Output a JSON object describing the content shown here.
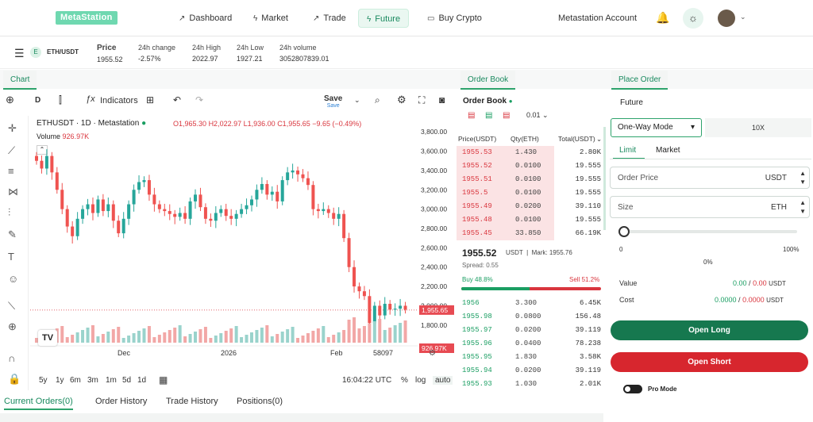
{
  "nav": {
    "logo": "MetaStation",
    "items": [
      {
        "label": "Dashboard"
      },
      {
        "label": "Market"
      },
      {
        "label": "Trade"
      },
      {
        "label": "Future"
      },
      {
        "label": "Buy Crypto"
      }
    ],
    "account": "Metastation Account"
  },
  "ticker": {
    "pair": "ETH/USDT",
    "coin": "E",
    "price_label": "Price",
    "price": "1955.52",
    "change_label": "24h change",
    "change": "-2.57%",
    "high_label": "24h High",
    "high": "2022.97",
    "low_label": "24h Low",
    "low": "1927.21",
    "volume_label": "24h volume",
    "volume": "3052807839.01"
  },
  "chart_panel": {
    "tab": "Chart",
    "interval": "D",
    "indicators": "Indicators",
    "save": "Save",
    "save_sub": "Save",
    "symbol": "ETHUSDT · 1D · Metastation",
    "ohlc": {
      "o": "O1,965.30",
      "h": "H2,022.97",
      "l": "L1,936.00",
      "c": "C1,955.65",
      "chg": "−9.65 (−0.49%)"
    },
    "volume_label": "Volume",
    "volume_value": "926.97K",
    "price_tag": "1,955.65",
    "vol_tag": "926.97K",
    "y_ticks": [
      "3,800.00",
      "3,600.00",
      "3,400.00",
      "3,200.00",
      "3,000.00",
      "2,800.00",
      "2,600.00",
      "2,400.00",
      "2,200.00",
      "2,000.00",
      "1,800.00"
    ],
    "x_ticks": [
      "Dec",
      "2026",
      "Feb"
    ],
    "x_extra": "58097",
    "ranges": [
      "5y",
      "1y",
      "6m",
      "3m",
      "1m",
      "5d",
      "1d"
    ],
    "time": "16:04:22 UTC",
    "pct": "%",
    "log": "log",
    "auto": "auto"
  },
  "chart_data": {
    "type": "candlestick",
    "ylim": [
      1700,
      3900
    ],
    "y_ticks": [
      3800,
      3600,
      3400,
      3200,
      3000,
      2800,
      2600,
      2400,
      2200,
      2000,
      1800
    ],
    "x_ticks": [
      "Dec",
      "2026",
      "Feb"
    ],
    "last_price": 1955.65
  },
  "orderbook": {
    "tab": "Order Book",
    "title": "Order Book",
    "step": "0.01",
    "headers": [
      "Price(USDT)",
      "Qty(ETH)",
      "Total(USDT)"
    ],
    "asks": [
      [
        "1955.53",
        "1.430",
        "2.80K"
      ],
      [
        "1955.52",
        "0.0100",
        "19.555"
      ],
      [
        "1955.51",
        "0.0100",
        "19.555"
      ],
      [
        "1955.5",
        "0.0100",
        "19.555"
      ],
      [
        "1955.49",
        "0.0200",
        "39.110"
      ],
      [
        "1955.48",
        "0.0100",
        "19.555"
      ],
      [
        "1955.45",
        "33.850",
        "66.19K"
      ]
    ],
    "mid": "1955.52",
    "mid_unit": "USDT",
    "mark_label": "Mark:",
    "mark": "1955.76",
    "spread": "Spread: 0.55",
    "buy": "Buy 48.8%",
    "sell": "Sell 51.2%",
    "bids": [
      [
        "1956",
        "3.300",
        "6.45K"
      ],
      [
        "1955.98",
        "0.0800",
        "156.48"
      ],
      [
        "1955.97",
        "0.0200",
        "39.119"
      ],
      [
        "1955.96",
        "0.0400",
        "78.238"
      ],
      [
        "1955.95",
        "1.830",
        "3.58K"
      ],
      [
        "1955.94",
        "0.0200",
        "39.119"
      ],
      [
        "1955.93",
        "1.030",
        "2.01K"
      ]
    ]
  },
  "place": {
    "tab": "Place Order",
    "type": "Future",
    "mode": "One-Way Mode",
    "leverage": "10X",
    "limit": "Limit",
    "market": "Market",
    "order_price_ph": "Order Price",
    "size_ph": "Size",
    "usdt": "USDT",
    "eth": "ETH",
    "s0": "0",
    "s100": "100%",
    "pct0": "0%",
    "value_label": "Value",
    "value_a": "0.00",
    "value_b": "0.00",
    "cost_label": "Cost",
    "cost_a": "0.0000",
    "cost_b": "0.0000",
    "slash": "/",
    "long": "Open Long",
    "short": "Open Short",
    "pro": "Pro Mode"
  },
  "orders": {
    "tabs": [
      "Current Orders(0)",
      "Order History",
      "Trade History",
      "Positions(0)"
    ]
  }
}
